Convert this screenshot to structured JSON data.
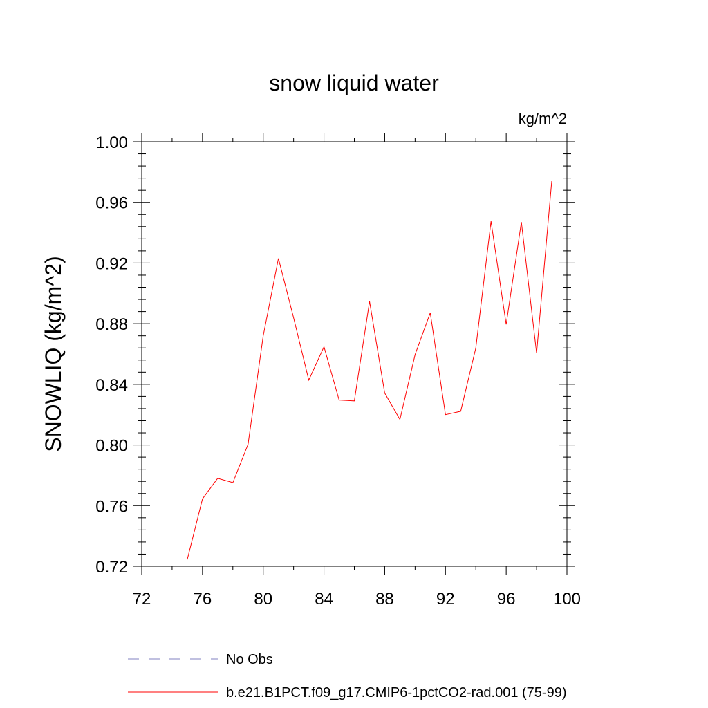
{
  "chart_data": {
    "type": "line",
    "title": "snow liquid water",
    "units_label": "kg/m^2",
    "ylabel": "SNOWLIQ  (kg/m^2)",
    "xlabel": "",
    "xlim": [
      72,
      100
    ],
    "ylim": [
      0.72,
      1.0
    ],
    "x_ticks": [
      "72",
      "76",
      "80",
      "84",
      "88",
      "92",
      "96",
      "100"
    ],
    "y_ticks": [
      "0.72",
      "0.76",
      "0.80",
      "0.84",
      "0.88",
      "0.92",
      "0.96",
      "1.00"
    ],
    "grid": false,
    "series": [
      {
        "name": "b.e21.B1PCT.f09_g17.CMIP6-1pctCO2-rad.001 (75-99)",
        "color": "#ff0000",
        "style": "solid",
        "x": [
          75,
          76,
          77,
          78,
          79,
          80,
          81,
          82,
          83,
          84,
          85,
          86,
          87,
          88,
          89,
          90,
          91,
          92,
          93,
          94,
          95,
          96,
          97,
          98,
          99
        ],
        "values": [
          0.7245,
          0.7645,
          0.778,
          0.7752,
          0.8005,
          0.872,
          0.923,
          0.884,
          0.8428,
          0.8648,
          0.8296,
          0.8291,
          0.8947,
          0.8343,
          0.8168,
          0.8597,
          0.8872,
          0.82,
          0.8222,
          0.864,
          0.9475,
          0.8795,
          0.947,
          0.8605,
          0.974
        ]
      }
    ],
    "legend": {
      "placement": "bottom",
      "entries": [
        {
          "label": "No Obs",
          "color": "#8080c0",
          "style": "dashed"
        },
        {
          "label": "b.e21.B1PCT.f09_g17.CMIP6-1pctCO2-rad.001 (75-99)",
          "color": "#ff0000",
          "style": "solid"
        }
      ]
    }
  }
}
